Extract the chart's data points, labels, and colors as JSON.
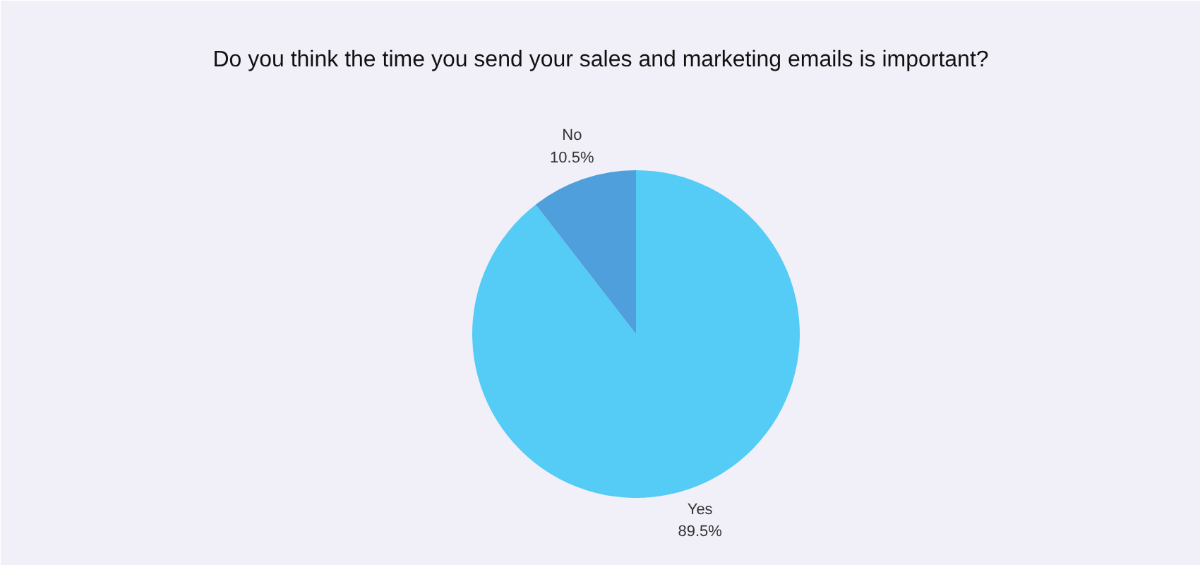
{
  "chart_data": {
    "type": "pie",
    "title": "Do you think the time you send your sales and marketing emails is important?",
    "categories": [
      "Yes",
      "No"
    ],
    "values": [
      89.5,
      10.5
    ],
    "colors": [
      "#55ccf5",
      "#4f9fdc"
    ],
    "value_labels": [
      "89.5%",
      "10.5%"
    ]
  }
}
